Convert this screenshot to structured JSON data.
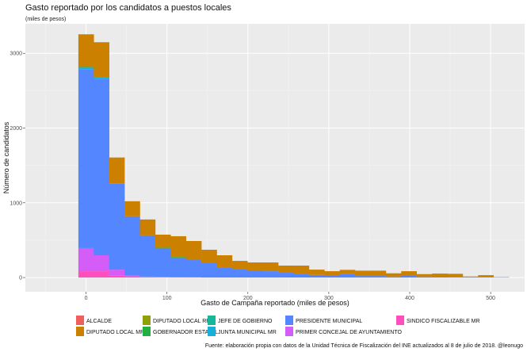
{
  "chart_data": {
    "type": "bar",
    "stacked": true,
    "title": "Gasto reportado por los candidatos a puestos locales",
    "subtitle": "(miles de pesos)",
    "xlabel": "Gasto de Campaña reportado (miles de pesos)",
    "ylabel": "Número de candidatos",
    "caption": "Fuente: elaboración propia con datos de la Unidad Técnica de Fiscalización del INE actualizados al 8 de julio de 2018. @leonugo",
    "xlim": [
      -75,
      542
    ],
    "ylim": [
      -190,
      3395
    ],
    "xticks": [
      0,
      100,
      200,
      300,
      400,
      500
    ],
    "yticks": [
      0,
      1000,
      2000,
      3000
    ],
    "grid": true,
    "legend_position": "bottom",
    "bin_width": 19,
    "x": [
      0,
      19,
      38,
      57,
      76,
      95,
      114,
      133,
      152,
      171,
      190,
      209,
      228,
      247,
      266,
      285,
      304,
      323,
      342,
      361,
      380,
      399,
      418,
      437,
      456,
      475,
      494,
      513
    ],
    "series": [
      {
        "name": "SINDICO FISCALIZABLE MR",
        "color": "#FF4FBF",
        "values": [
          85,
          85,
          30,
          15,
          8,
          5,
          3,
          2,
          0,
          0,
          0,
          0,
          0,
          0,
          0,
          0,
          0,
          0,
          0,
          0,
          0,
          0,
          0,
          0,
          0,
          0,
          0,
          0
        ]
      },
      {
        "name": "PRIMER CONCEJAL DE AYUNTAMIENTO",
        "color": "#D45CF7",
        "values": [
          309,
          213,
          76,
          10,
          5,
          3,
          2,
          1,
          0,
          0,
          0,
          0,
          0,
          0,
          0,
          0,
          0,
          0,
          0,
          0,
          0,
          0,
          0,
          0,
          0,
          0,
          0,
          0
        ]
      },
      {
        "name": "PRESIDENTE MUNICIPAL",
        "color": "#5386FF",
        "values": [
          2393,
          2362,
          1149,
          794,
          551,
          386,
          261,
          231,
          202,
          138,
          117,
          96,
          85,
          64,
          53,
          35,
          28,
          50,
          21,
          21,
          14,
          28,
          14,
          11,
          10,
          5,
          8,
          3
        ]
      },
      {
        "name": "JUNTA MUNICIPAL MR",
        "color": "#17B0DA",
        "values": [
          20,
          20,
          0,
          0,
          0,
          0,
          0,
          0,
          0,
          0,
          0,
          0,
          0,
          0,
          0,
          0,
          0,
          0,
          0,
          0,
          0,
          0,
          0,
          0,
          0,
          0,
          0,
          0
        ]
      },
      {
        "name": "JEFE DE GOBIERNO",
        "color": "#17B79A",
        "values": [
          10,
          0,
          0,
          0,
          0,
          0,
          0,
          0,
          0,
          0,
          0,
          0,
          0,
          0,
          0,
          0,
          0,
          0,
          0,
          0,
          0,
          0,
          0,
          0,
          0,
          0,
          0,
          0
        ]
      },
      {
        "name": "GOBERNADOR ESTATAL",
        "color": "#22B040",
        "values": [
          0,
          0,
          0,
          0,
          0,
          5,
          8,
          0,
          0,
          0,
          0,
          0,
          0,
          0,
          0,
          0,
          0,
          0,
          0,
          0,
          0,
          0,
          0,
          0,
          0,
          0,
          0,
          0
        ]
      },
      {
        "name": "DIPUTADO LOCAL RP",
        "color": "#8FA00A",
        "values": [
          0,
          0,
          0,
          0,
          0,
          0,
          0,
          0,
          0,
          0,
          0,
          0,
          0,
          0,
          0,
          0,
          0,
          0,
          0,
          0,
          0,
          0,
          0,
          0,
          0,
          0,
          0,
          0
        ]
      },
      {
        "name": "DIPUTADO LOCAL MR",
        "color": "#CC8000",
        "values": [
          430,
          461,
          351,
          202,
          213,
          175,
          279,
          255,
          170,
          160,
          106,
          106,
          117,
          96,
          107,
          71,
          57,
          53,
          71,
          71,
          43,
          57,
          32,
          42,
          40,
          9,
          24,
          4
        ]
      },
      {
        "name": "ALCALDE",
        "color": "#F0605A",
        "values": [
          8,
          8,
          0,
          0,
          0,
          0,
          0,
          0,
          0,
          0,
          0,
          0,
          0,
          0,
          0,
          0,
          0,
          0,
          0,
          0,
          0,
          0,
          0,
          0,
          0,
          0,
          0,
          0
        ]
      }
    ],
    "legend": [
      "ALCALDE",
      "DIPUTADO LOCAL MR",
      "DIPUTADO LOCAL RP",
      "GOBERNADOR ESTATAL",
      "JEFE DE GOBIERNO",
      "JUNTA MUNICIPAL MR",
      "PRESIDENTE MUNICIPAL",
      "PRIMER CONCEJAL DE AYUNTAMIENTO",
      "SINDICO FISCALIZABLE MR"
    ]
  }
}
